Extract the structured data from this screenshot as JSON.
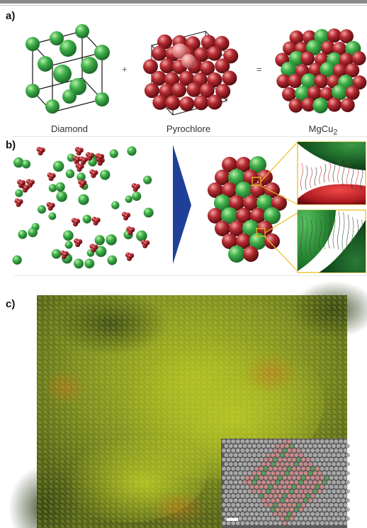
{
  "figure": {
    "panel_labels": {
      "a": "a)",
      "b": "b)",
      "c": "c)"
    },
    "panel_a": {
      "structures": [
        {
          "name": "Diamond",
          "sphere_color": "#3aa845"
        },
        {
          "name": "Pyrochlore",
          "sphere_color": "#a3262a"
        },
        {
          "name": "MgCu",
          "subscript": "2"
        }
      ],
      "operators": {
        "plus": "+",
        "equals": "="
      }
    },
    "panel_b": {
      "colors": {
        "green": "#3aa845",
        "red": "#b3202a",
        "arrow": "#1f3f99",
        "zoom_box": "#e8c020"
      }
    },
    "panel_c": {
      "inset_colors": {
        "gray": "#9a9a9a",
        "pink": "#c98a8a",
        "green": "#5d9e5d"
      }
    }
  }
}
